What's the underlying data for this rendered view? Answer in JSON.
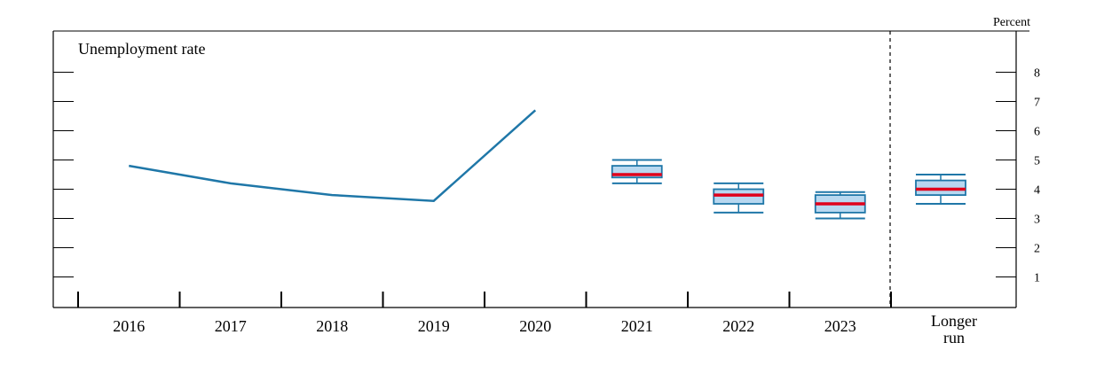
{
  "chart_data": {
    "type": "line",
    "title": "Unemployment rate",
    "unit_label": "Percent",
    "x_categories": [
      "2016",
      "2017",
      "2018",
      "2019",
      "2020",
      "2021",
      "2022",
      "2023",
      "Longer run"
    ],
    "y_ticks": [
      1,
      2,
      3,
      4,
      5,
      6,
      7,
      8
    ],
    "ylim": [
      0,
      9
    ],
    "y_axis_side": "right",
    "grid": false,
    "history": {
      "x": [
        "2016",
        "2017",
        "2018",
        "2019",
        "2020"
      ],
      "values": [
        4.8,
        4.2,
        3.8,
        3.6,
        6.7
      ]
    },
    "projections": [
      {
        "x": "2021",
        "whisker_low": 4.2,
        "q1": 4.4,
        "median": 4.5,
        "q3": 4.8,
        "whisker_high": 5.0
      },
      {
        "x": "2022",
        "whisker_low": 3.2,
        "q1": 3.5,
        "median": 3.8,
        "q3": 4.0,
        "whisker_high": 4.2
      },
      {
        "x": "2023",
        "whisker_low": 3.0,
        "q1": 3.2,
        "median": 3.5,
        "q3": 3.8,
        "whisker_high": 3.9
      },
      {
        "x": "Longer run",
        "whisker_low": 3.5,
        "q1": 3.8,
        "median": 4.0,
        "q3": 4.3,
        "whisker_high": 4.5
      }
    ],
    "colors": {
      "line": "#1f77a8",
      "box_fill": "#b8d8f0",
      "box_stroke": "#1f77a8",
      "median": "#e0001b",
      "axis": "#000000"
    }
  }
}
